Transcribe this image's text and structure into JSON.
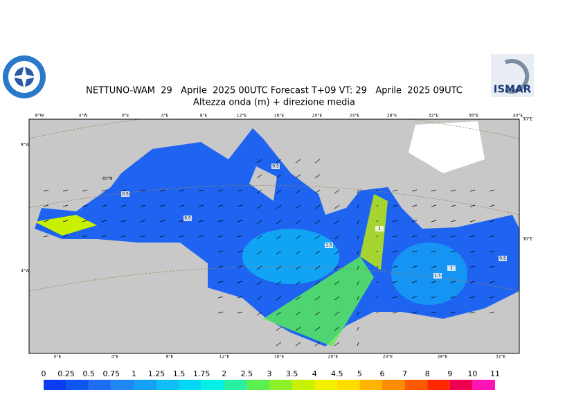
{
  "header": {
    "title": "NETTUNO-WAM  29   Aprile  2025 00UTC Forecast T+09 VT: 29   Aprile  2025 09UTC",
    "subtitle": "Altezza onda (m) + direzione media",
    "logo_text": "ISMAR"
  },
  "map": {
    "top_labels": [
      "8°W",
      "4°W",
      "0°E",
      "4°E",
      "8°E",
      "12°E",
      "16°E",
      "20°E",
      "24°E",
      "28°E",
      "32°E",
      "36°E",
      "40°E"
    ],
    "bottom_labels": [
      "0°E",
      "4°E",
      "8°E",
      "12°E",
      "16°E",
      "20°E",
      "24°E",
      "28°E",
      "32°E"
    ],
    "left_labels": [
      "8°W",
      "4°W"
    ],
    "extra_labels": [
      "40°N",
      "30°E",
      "36°E"
    ],
    "contour_labels": [
      "0.5",
      "0.5",
      "0.5",
      "1.5",
      "1.5",
      "1",
      "0.5",
      "1"
    ]
  },
  "legend": {
    "levels": [
      0,
      0.25,
      0.5,
      0.75,
      1,
      1.25,
      1.5,
      1.75,
      2,
      2.5,
      3,
      3.5,
      4,
      4.5,
      5,
      6,
      7,
      8,
      9,
      10,
      11
    ],
    "colors": [
      "#0a3cf0",
      "#0f55f0",
      "#1e6ef5",
      "#1e87f5",
      "#14a0f5",
      "#0fbef5",
      "#00d7f5",
      "#00f0e6",
      "#28f0a0",
      "#5af050",
      "#8cf028",
      "#c8f000",
      "#f0f000",
      "#ffdc00",
      "#ffb400",
      "#ff8c00",
      "#ff5a00",
      "#ff2800",
      "#f00050",
      "#ff14b4"
    ]
  }
}
